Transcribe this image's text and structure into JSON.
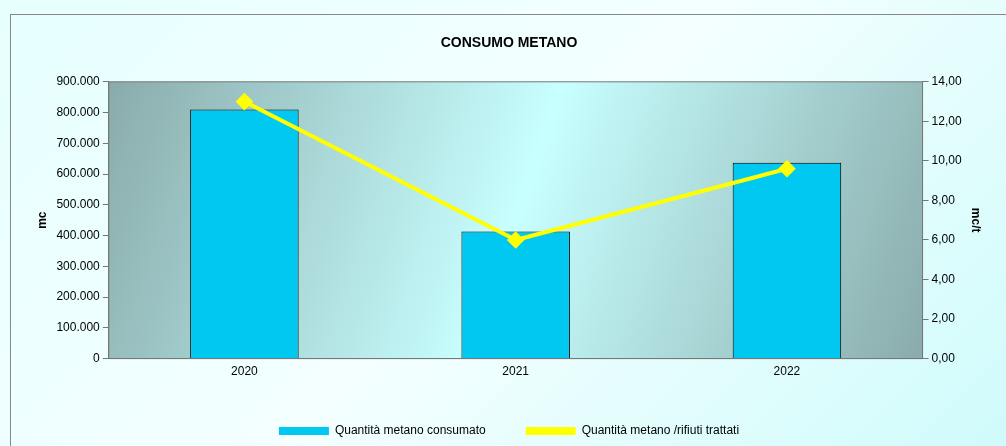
{
  "chart_data": {
    "type": "bar",
    "title": "CONSUMO METANO",
    "ylabel": "mc",
    "y2label": "mc/t",
    "categories": [
      "2020",
      "2021",
      "2022"
    ],
    "series": [
      {
        "name": "Quantità metano consumato",
        "color": "#00c8f0",
        "values": [
          810000,
          413000,
          637000
        ]
      },
      {
        "name": "Quantità metano /rifiuti trattati",
        "type": "line",
        "axis": "y2",
        "color": "#ffff00",
        "values": [
          13.0,
          6.0,
          9.6
        ]
      }
    ],
    "ylim": [
      0,
      900000
    ],
    "yticks": [
      0,
      {
        "value": 100000,
        "label": "100.000"
      },
      {
        "value": 200000,
        "label": "200.000"
      },
      {
        "value": 300000,
        "label": "300.000"
      },
      {
        "value": 400000,
        "label": "400.000"
      },
      {
        "value": 500000,
        "label": "500.000"
      },
      {
        "value": 600000,
        "label": "600.000"
      },
      {
        "value": 700000,
        "label": "700.000"
      },
      {
        "value": 800000,
        "label": "800.000"
      },
      {
        "value": 900000,
        "label": "900.000"
      }
    ],
    "y2lim": [
      0,
      14
    ],
    "y2ticks": [
      {
        "value": 0,
        "label": "0,00"
      },
      {
        "value": 2,
        "label": "2,00"
      },
      {
        "value": 4,
        "label": "4,00"
      },
      {
        "value": 6,
        "label": "6,00"
      },
      {
        "value": 8,
        "label": "8,00"
      },
      {
        "value": 10,
        "label": "10,00"
      },
      {
        "value": 12,
        "label": "12,00"
      },
      {
        "value": 14,
        "label": "14,00"
      }
    ],
    "grid": false,
    "legend": "bottom",
    "marker": "diamond",
    "line_style": "solid"
  }
}
